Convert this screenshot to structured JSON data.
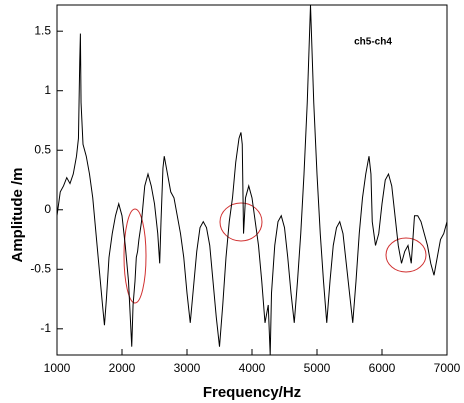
{
  "chart_data": {
    "type": "line",
    "annotation": "ch5-ch4",
    "x_label": "Frequency/Hz",
    "y_label": "Amplitude /m",
    "color": "#000000",
    "x": [
      1000,
      1050,
      1100,
      1150,
      1200,
      1250,
      1300,
      1330,
      1350,
      1360,
      1370,
      1400,
      1450,
      1500,
      1550,
      1600,
      1650,
      1700,
      1730,
      1760,
      1800,
      1850,
      1900,
      1950,
      2000,
      2050,
      2100,
      2150,
      2170,
      2200,
      2220,
      2240,
      2260,
      2300,
      2350,
      2400,
      2450,
      2500,
      2550,
      2580,
      2600,
      2630,
      2650,
      2700,
      2750,
      2800,
      2850,
      2900,
      2950,
      3000,
      3050,
      3100,
      3150,
      3200,
      3250,
      3300,
      3350,
      3400,
      3450,
      3500,
      3550,
      3600,
      3650,
      3700,
      3750,
      3800,
      3830,
      3850,
      3870,
      3900,
      3950,
      4000,
      4050,
      4100,
      4150,
      4200,
      4250,
      4280,
      4300,
      4350,
      4400,
      4450,
      4500,
      4550,
      4600,
      4650,
      4700,
      4750,
      4800,
      4850,
      4900,
      4950,
      5000,
      5050,
      5100,
      5150,
      5200,
      5250,
      5300,
      5350,
      5400,
      5450,
      5500,
      5550,
      5600,
      5650,
      5700,
      5750,
      5800,
      5830,
      5850,
      5900,
      5950,
      6000,
      6050,
      6100,
      6150,
      6200,
      6250,
      6300,
      6350,
      6400,
      6450,
      6500,
      6550,
      6600,
      6650,
      6700,
      6750,
      6800,
      6850,
      6900,
      6950,
      7000
    ],
    "values": [
      -0.05,
      0.15,
      0.2,
      0.27,
      0.22,
      0.3,
      0.45,
      0.6,
      1.25,
      1.48,
      0.9,
      0.55,
      0.45,
      0.3,
      0.1,
      -0.2,
      -0.5,
      -0.8,
      -0.97,
      -0.75,
      -0.4,
      -0.2,
      -0.05,
      0.05,
      -0.05,
      -0.3,
      -0.6,
      -1.15,
      -0.8,
      -0.6,
      -0.4,
      -0.35,
      -0.25,
      -0.1,
      0.2,
      0.3,
      0.2,
      0.05,
      -0.2,
      -0.45,
      -0.1,
      0.35,
      0.45,
      0.3,
      0.15,
      0.1,
      -0.05,
      -0.2,
      -0.4,
      -0.7,
      -0.95,
      -0.65,
      -0.35,
      -0.15,
      -0.1,
      -0.15,
      -0.3,
      -0.6,
      -0.9,
      -1.15,
      -0.8,
      -0.4,
      -0.1,
      0.1,
      0.4,
      0.6,
      0.65,
      0.55,
      -0.2,
      0.1,
      0.2,
      0.1,
      -0.1,
      -0.3,
      -0.6,
      -0.95,
      -0.8,
      -1.22,
      -0.7,
      -0.3,
      -0.1,
      -0.05,
      -0.15,
      -0.4,
      -0.7,
      -0.95,
      -0.6,
      -0.2,
      0.3,
      0.9,
      1.72,
      0.9,
      0.3,
      -0.2,
      -0.6,
      -0.95,
      -0.6,
      -0.3,
      -0.15,
      -0.1,
      -0.2,
      -0.45,
      -0.7,
      -0.95,
      -0.6,
      -0.2,
      0.1,
      0.3,
      0.45,
      0.3,
      -0.1,
      -0.3,
      -0.2,
      0.05,
      0.25,
      0.3,
      0.2,
      -0.05,
      -0.3,
      -0.45,
      -0.35,
      -0.3,
      -0.45,
      -0.05,
      -0.05,
      -0.1,
      -0.2,
      -0.3,
      -0.45,
      -0.55,
      -0.4,
      -0.25,
      -0.2,
      -0.1
    ],
    "xlim": [
      1000,
      7000
    ],
    "xticks": [
      1000,
      2000,
      3000,
      4000,
      5000,
      6000,
      7000
    ],
    "ylim": [
      -1.22,
      1.72
    ],
    "yticks": [
      -1,
      -0.5,
      0,
      0.5,
      1,
      1.5
    ]
  }
}
